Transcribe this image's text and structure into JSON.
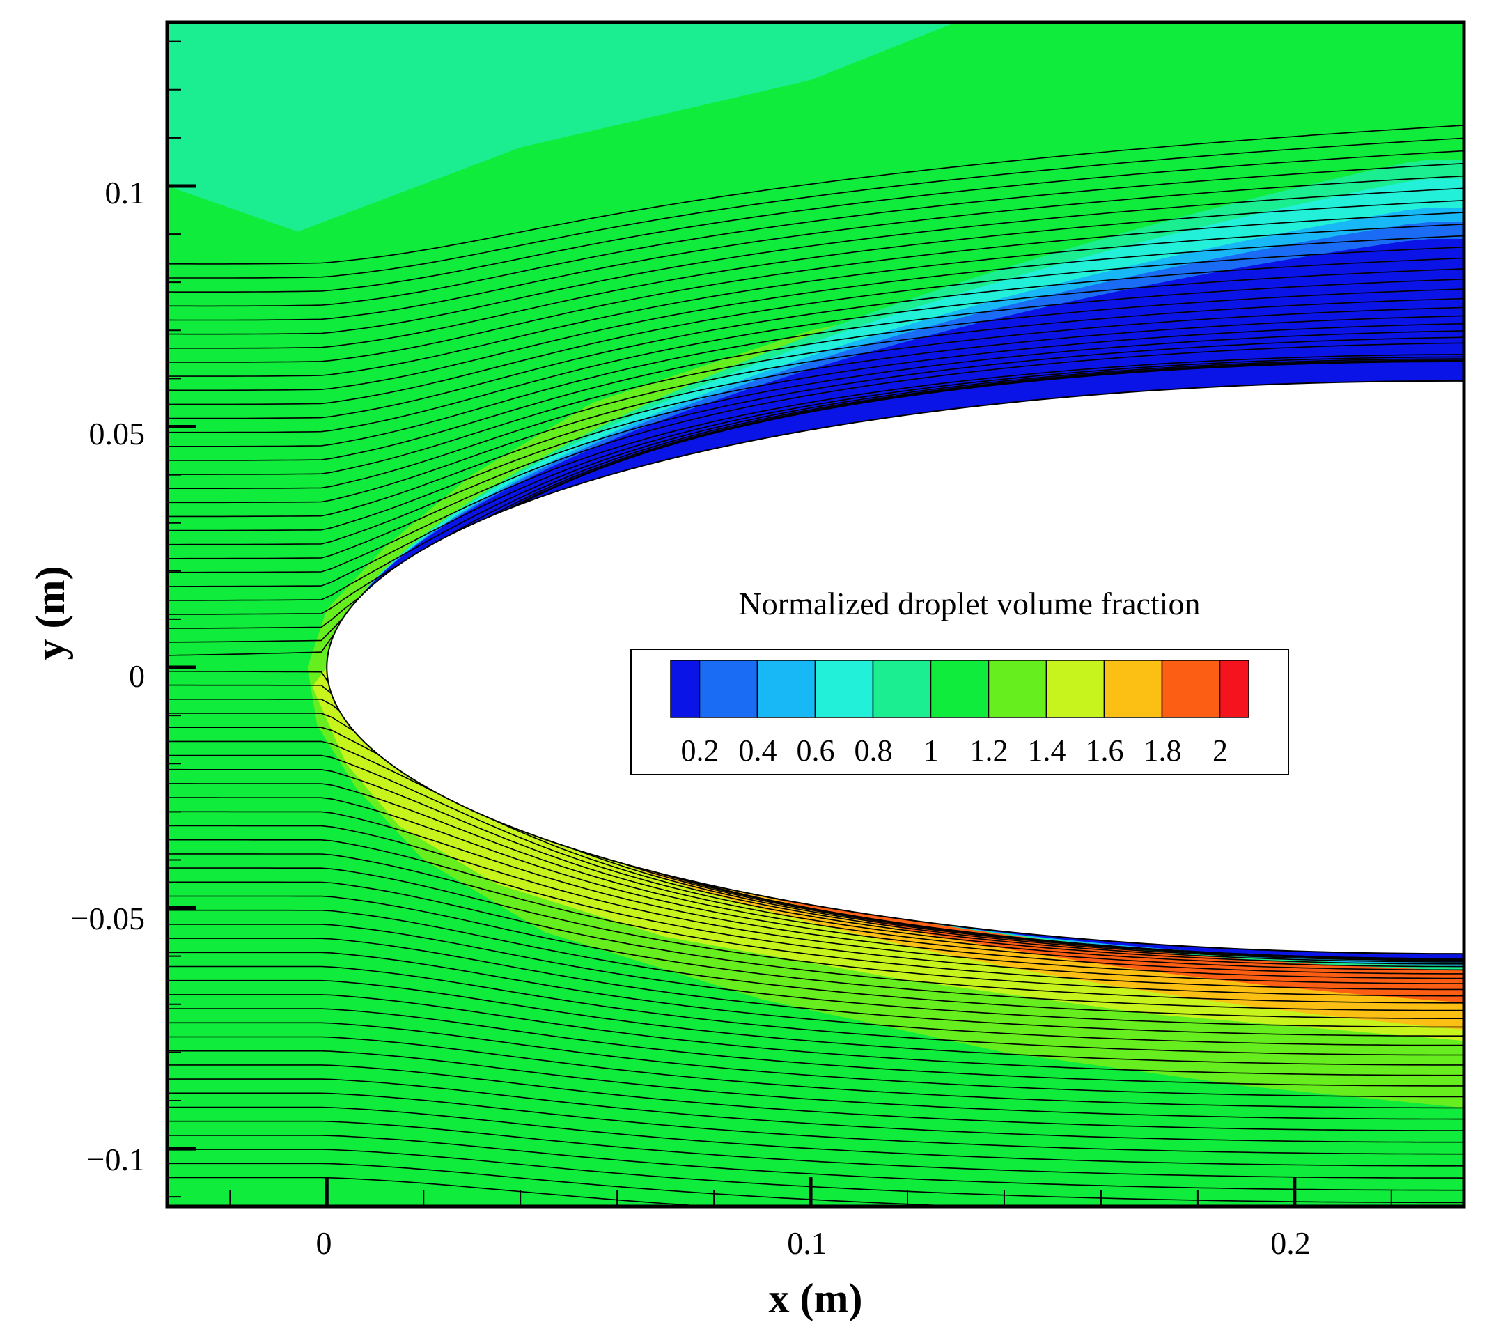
{
  "chart_data": {
    "type": "heatmap",
    "title": "",
    "xlabel": "x (m)",
    "ylabel": "y (m)",
    "xlim": [
      -0.033,
      0.235
    ],
    "ylim": [
      -0.112,
      0.134
    ],
    "x_ticks": [
      0,
      0.1,
      0.2
    ],
    "x_tick_labels": [
      "0",
      "0.1",
      "0.2"
    ],
    "y_ticks": [
      -0.1,
      -0.05,
      0,
      0.05,
      0.1
    ],
    "y_tick_labels": [
      "−0.1",
      "−0.05",
      "0",
      "0.05",
      "0.1"
    ],
    "grid": false,
    "legend": {
      "title": "Normalized droplet volume fraction",
      "placement": "center-right",
      "levels": [
        0.1,
        0.2,
        0.4,
        0.6,
        0.8,
        1,
        1.2,
        1.4,
        1.6,
        1.8,
        2,
        2.1
      ],
      "labels": [
        "0.2",
        "0.4",
        "0.6",
        "0.8",
        "1",
        "1.2",
        "1.4",
        "1.6",
        "1.8",
        "2"
      ],
      "colors": [
        "#0a14e6",
        "#1a6cf4",
        "#18b8f6",
        "#22f0d8",
        "#1aee90",
        "#10ec3c",
        "#66ee1e",
        "#c8f41e",
        "#fcc014",
        "#fc5e14",
        "#f5141e"
      ]
    },
    "body": {
      "shape": "half-ellipse nose",
      "nose_x": 0,
      "semi_thickness": 0.0595,
      "surface": [
        [
          0,
          0
        ],
        [
          0.01,
          0.0237
        ],
        [
          0.02,
          0.0309
        ],
        [
          0.04,
          0.0388
        ],
        [
          0.06,
          0.0437
        ],
        [
          0.08,
          0.0471
        ],
        [
          0.1,
          0.0498
        ],
        [
          0.12,
          0.0519
        ],
        [
          0.14,
          0.0537
        ],
        [
          0.16,
          0.0553
        ],
        [
          0.18,
          0.0566
        ],
        [
          0.2,
          0.0578
        ],
        [
          0.22,
          0.0589
        ],
        [
          0.235,
          0.0595
        ]
      ]
    },
    "streamlines": {
      "count": 66,
      "color": "#000000",
      "upstream_y_range": [
        -0.106,
        0.084
      ]
    },
    "field_regions": [
      {
        "name": "freestream upper",
        "value": 1.0
      },
      {
        "name": "freestream lower",
        "value": 1.1
      },
      {
        "name": "nose compression shell",
        "value": 1.3
      },
      {
        "name": "upper shadow zone",
        "value": 0.1
      },
      {
        "name": "lower surface concentration band",
        "value": 2.0
      }
    ]
  }
}
